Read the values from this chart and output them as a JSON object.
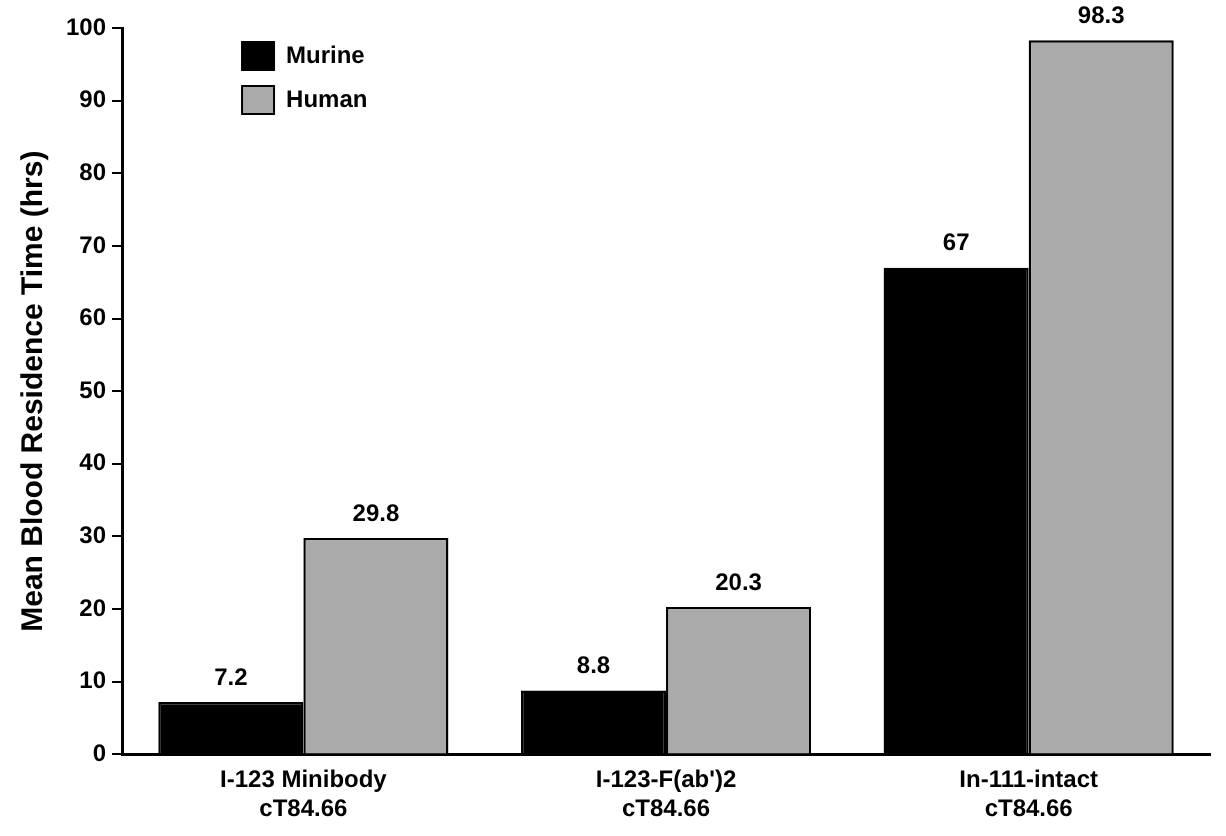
{
  "chart_data": {
    "type": "bar",
    "ylabel": "Mean Blood Residence Time (hrs)",
    "categories": [
      "I-123 Minibody\ncT84.66",
      "I-123-F(ab')2\ncT84.66",
      "In-111-intact\ncT84.66"
    ],
    "series": [
      {
        "name": "Murine",
        "color": "#000000",
        "values": [
          7.2,
          8.8,
          67
        ]
      },
      {
        "name": "Human",
        "color": "#aaaaaa",
        "values": [
          29.8,
          20.3,
          98.3
        ]
      }
    ],
    "ylim": [
      0,
      100
    ],
    "yticks": [
      0,
      10,
      20,
      30,
      40,
      50,
      60,
      70,
      80,
      90,
      100
    ],
    "grid": false,
    "legend": "top left",
    "data_labels": true
  }
}
